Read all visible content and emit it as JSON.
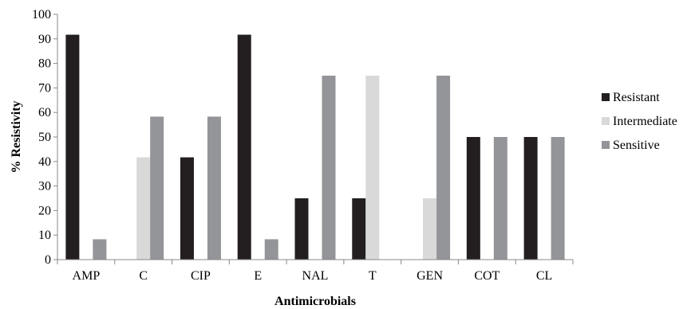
{
  "chart_data": {
    "type": "bar",
    "title": "",
    "xlabel": "Antimicrobials",
    "ylabel": "% Resistivity",
    "ylim": [
      0,
      100
    ],
    "yticks": [
      0,
      10,
      20,
      30,
      40,
      50,
      60,
      70,
      80,
      90,
      100
    ],
    "grid": false,
    "legend_position": "right",
    "categories": [
      "AMP",
      "C",
      "CIP",
      "E",
      "NAL",
      "T",
      "GEN",
      "COT",
      "CL"
    ],
    "series": [
      {
        "name": "Resistant",
        "color": "#231f20",
        "values": [
          91.7,
          0,
          41.7,
          91.7,
          25,
          25,
          0,
          50,
          50
        ]
      },
      {
        "name": "Intermediate",
        "color": "#d9d9d9",
        "values": [
          0,
          41.7,
          0,
          0,
          0,
          75,
          25,
          0,
          0
        ]
      },
      {
        "name": "Sensitive",
        "color": "#939598",
        "values": [
          8.3,
          58.3,
          58.3,
          8.3,
          75,
          0,
          75,
          50,
          50
        ]
      }
    ]
  }
}
